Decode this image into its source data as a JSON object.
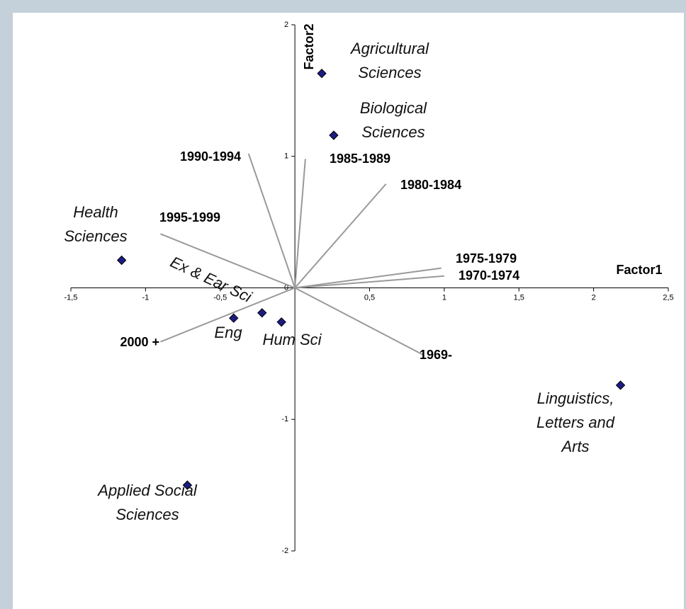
{
  "chart_data": {
    "type": "biplot",
    "x_label": "Factor1",
    "y_label": "Factor2",
    "xlim": [
      -1.5,
      2.5
    ],
    "ylim": [
      -2,
      2
    ],
    "xticks": [
      {
        "value": -1.5,
        "label": "-1,5"
      },
      -1,
      {
        "value": -0.5,
        "label": "-0,5"
      },
      {
        "value": 0.5,
        "label": "0,5"
      },
      1,
      {
        "value": 1.5,
        "label": "1,5"
      },
      2,
      {
        "value": 2.5,
        "label": "2,5"
      }
    ],
    "yticks": [
      2,
      1,
      0,
      -1,
      -2
    ],
    "points": {
      "color": "#1c1c84",
      "labels": [
        "Agricultural Sciences",
        "Biological Sciences",
        "Health Sciences",
        "Ex & Ear Sci",
        "Eng",
        "Hum Sci",
        "Linguistics, Letters and Arts",
        "Applied Social Sciences"
      ],
      "x": [
        0.18,
        0.26,
        -1.16,
        -0.22,
        -0.41,
        -0.09,
        2.18,
        -0.72
      ],
      "y": [
        1.63,
        1.16,
        0.21,
        -0.19,
        -0.23,
        -0.26,
        -0.74,
        -1.5
      ]
    },
    "vectors": {
      "color": "#999999",
      "labels": [
        "1990-1994",
        "1985-1989",
        "1980-1984",
        "1995-1999",
        "1975-1979",
        "1970-1974",
        "2000 +",
        "1969-"
      ],
      "x": [
        -0.31,
        0.07,
        0.61,
        -0.9,
        0.98,
        1.0,
        -0.9,
        0.86
      ],
      "y": [
        1.02,
        0.98,
        0.79,
        0.41,
        0.15,
        0.09,
        -0.41,
        -0.51
      ]
    }
  }
}
